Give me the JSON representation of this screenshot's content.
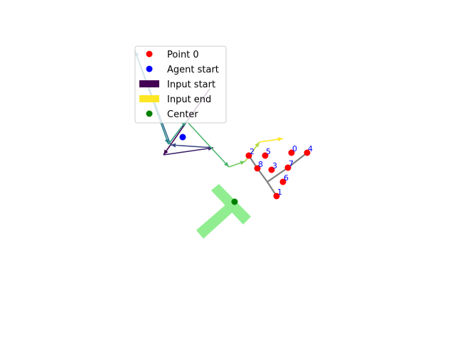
{
  "chart_data": {
    "type": "scatter",
    "axes_visible": false,
    "xlim": [
      0,
      640
    ],
    "ylim": [
      480,
      0
    ],
    "colors": {
      "point": "#ff0000",
      "agent": "#0000ff",
      "center": "#008000",
      "shape": "#90ee90",
      "tree": "#808080",
      "label": "#0000ff",
      "input_start": "#440154",
      "input_end": "#fde725"
    },
    "legend": {
      "placement": "upper-left",
      "entries": [
        {
          "label": "Point 0",
          "marker": "dot",
          "color": "#ff0000"
        },
        {
          "label": "Agent start",
          "marker": "dot",
          "color": "#0000ff"
        },
        {
          "label": "Input start",
          "marker": "bar",
          "color": "#440154"
        },
        {
          "label": "Input end",
          "marker": "bar",
          "color": "#fde725"
        },
        {
          "label": "Center",
          "marker": "dot",
          "color": "#008000"
        }
      ]
    },
    "points": [
      {
        "label": "0",
        "x": 410,
        "y": 215
      },
      {
        "label": "1",
        "x": 389,
        "y": 276
      },
      {
        "label": "2",
        "x": 350,
        "y": 219
      },
      {
        "label": "3",
        "x": 382,
        "y": 239
      },
      {
        "label": "4",
        "x": 432,
        "y": 215
      },
      {
        "label": "5",
        "x": 373,
        "y": 219
      },
      {
        "label": "6",
        "x": 398,
        "y": 256
      },
      {
        "label": "7",
        "x": 405,
        "y": 236
      },
      {
        "label": "8",
        "x": 362,
        "y": 237
      }
    ],
    "agent_start": {
      "x": 257,
      "y": 193
    },
    "center": {
      "x": 330,
      "y": 284
    },
    "tree_edges": [
      [
        [
          389,
          276
        ],
        [
          376,
          256
        ]
      ],
      [
        [
          376,
          256
        ],
        [
          362,
          237
        ]
      ],
      [
        [
          362,
          237
        ],
        [
          350,
          219
        ]
      ],
      [
        [
          376,
          256
        ],
        [
          405,
          236
        ]
      ],
      [
        [
          405,
          236
        ],
        [
          432,
          215
        ]
      ]
    ],
    "input_path": [
      [
        295,
        125
      ],
      [
        230,
        218
      ],
      [
        300,
        208
      ],
      [
        240,
        204
      ],
      [
        190,
        72
      ],
      [
        237,
        203
      ],
      [
        262,
        170
      ],
      [
        322,
        235
      ],
      [
        345,
        227
      ],
      [
        365,
        200
      ],
      [
        398,
        195
      ]
    ]
  }
}
